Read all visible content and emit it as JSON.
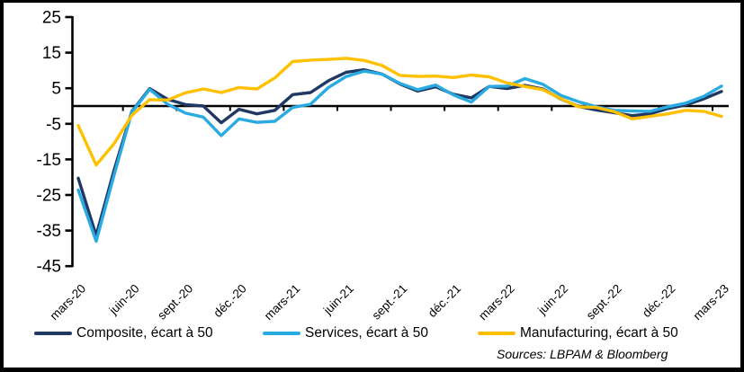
{
  "figure": {
    "sources_note": "Sources: LBPAM & Bloomberg"
  },
  "chart_data": {
    "type": "line",
    "grid": false,
    "legend_position": "bottom",
    "x_axis": {
      "tick_labels": [
        "mars-20",
        "juin-20",
        "sept.-20",
        "déc.-20",
        "mars-21",
        "juin-21",
        "sept.-21",
        "déc.-21",
        "mars-22",
        "juin-22",
        "sept.-22",
        "déc.-22",
        "mars-23"
      ],
      "points_per_tick": 3
    },
    "y_axis": {
      "tick_labels": [
        25,
        15,
        5,
        -5,
        -15,
        -25,
        -35,
        -45
      ],
      "range": [
        -45,
        25
      ],
      "zero_baseline": true
    },
    "x": [
      "mars-20",
      "avr.-20",
      "mai-20",
      "juin-20",
      "juil.-20",
      "août-20",
      "sept.-20",
      "oct.-20",
      "nov.-20",
      "déc.-20",
      "janv.-21",
      "févr.-21",
      "mars-21",
      "avr.-21",
      "mai-21",
      "juin-21",
      "juil.-21",
      "août-21",
      "sept.-21",
      "oct.-21",
      "nov.-21",
      "déc.-21",
      "janv.-22",
      "févr.-22",
      "mars-22",
      "avr.-22",
      "mai-22",
      "juin-22",
      "juil.-22",
      "août-22",
      "sept.-22",
      "oct.-22",
      "nov.-22",
      "déc.-22",
      "janv.-23",
      "févr.-23",
      "mars-23"
    ],
    "series": [
      {
        "name": "Composite, écart à 50",
        "color": "#1F3864",
        "values": [
          -20.3,
          -36.4,
          -18.1,
          -1.5,
          4.9,
          1.9,
          0.4,
          0,
          -4.7,
          -0.9,
          -2.2,
          -1.2,
          3.2,
          3.8,
          7.1,
          9.5,
          10.2,
          9,
          6.2,
          4.2,
          5.4,
          3.3,
          2.3,
          5.5,
          4.9,
          5.8,
          4.8,
          2,
          -0.1,
          -1.1,
          -1.9,
          -2.7,
          -2.2,
          -0.7,
          0.3,
          2,
          4.1
        ]
      },
      {
        "name": "Services, écart à 50",
        "color": "#29ABE2",
        "values": [
          -23.6,
          -38,
          -19.5,
          -1.7,
          4.7,
          0.5,
          -2,
          -3.1,
          -8.3,
          -3.6,
          -4.6,
          -4.3,
          -0.4,
          0.5,
          5.2,
          8.3,
          9.8,
          9,
          6.4,
          4.6,
          5.9,
          3.1,
          1.1,
          5.5,
          5.6,
          7.7,
          6.1,
          3,
          1.2,
          -0.2,
          -1.2,
          -1.4,
          -1.5,
          -0.2,
          0.8,
          2.7,
          5.6
        ]
      },
      {
        "name": "Manufacturing, écart à 50",
        "color": "#FFC000",
        "values": [
          -5.5,
          -16.6,
          -10.6,
          -2.6,
          1.8,
          1.7,
          3.7,
          4.8,
          3.8,
          5.2,
          4.8,
          7.9,
          12.5,
          12.9,
          13.1,
          13.4,
          12.8,
          11.4,
          8.6,
          8.3,
          8.4,
          8,
          8.7,
          8.2,
          6.5,
          5.5,
          4.6,
          2.1,
          -0.2,
          -0.4,
          -1.6,
          -3.6,
          -2.9,
          -2.2,
          -1.2,
          -1.5,
          -2.9
        ]
      }
    ]
  }
}
